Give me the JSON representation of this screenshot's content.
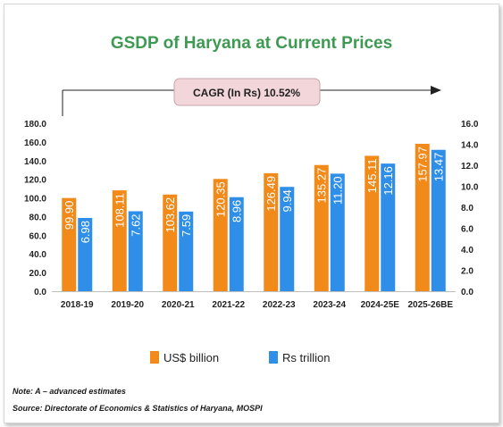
{
  "chart_data": {
    "type": "bar",
    "title": "GSDP of Haryana at Current Prices",
    "annotation": "CAGR (In Rs) 10.52%",
    "categories": [
      "2018-19",
      "2019-20",
      "2020-21",
      "2021-22",
      "2022-23",
      "2023-24",
      "2024-25E",
      "2025-26BE"
    ],
    "series": [
      {
        "name": "US$ billion",
        "axis": "left",
        "color": "#f28a1a",
        "values": [
          99.9,
          108.11,
          103.62,
          120.35,
          126.49,
          135.27,
          145.11,
          157.97
        ]
      },
      {
        "name": "Rs trillion",
        "axis": "right",
        "color": "#2f8fe8",
        "values": [
          6.98,
          7.62,
          7.59,
          8.96,
          9.94,
          11.2,
          12.16,
          13.47
        ]
      }
    ],
    "y_left": {
      "min": 0,
      "max": 180,
      "ticks": [
        "0.0",
        "20.0",
        "40.0",
        "60.0",
        "80.0",
        "100.0",
        "120.0",
        "140.0",
        "160.0",
        "180.0"
      ]
    },
    "y_right": {
      "min": 0,
      "max": 16,
      "ticks": [
        "0.0",
        "2.0",
        "4.0",
        "6.0",
        "8.0",
        "10.0",
        "12.0",
        "14.0",
        "16.0"
      ]
    },
    "grid": false,
    "legend_position": "bottom",
    "value_labels": [
      "99.90",
      "108.11",
      "103.62",
      "120.35",
      "126.49",
      "135.27",
      "145.11",
      "157.97",
      "6.98",
      "7.62",
      "7.59",
      "8.96",
      "9.94",
      "11.20",
      "12.16",
      "13.47"
    ]
  },
  "notes": {
    "note": "Note: A – advanced estimates",
    "source": "Source: Directorate of Economics & Statistics of Haryana, MOSPI"
  }
}
